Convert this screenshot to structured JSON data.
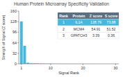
{
  "chart_data": {
    "type": "bar",
    "title": "Human Protein Microarray Specificity Validation",
    "xlabel": "Signal Rank",
    "ylabel": "Strength of Signal (Z score)",
    "x": [
      1,
      2,
      3,
      4,
      5,
      6,
      7,
      8,
      9,
      10,
      11,
      12,
      13,
      14,
      15,
      16,
      17,
      18,
      19,
      20,
      21,
      22,
      23,
      24,
      25,
      26,
      27,
      28,
      29,
      30
    ],
    "values": [
      128.79,
      54.91,
      3.39,
      1.8,
      1.5,
      1.2,
      1.0,
      0.8,
      0.6,
      0.5,
      0.4,
      0.3,
      0.25,
      0.2,
      0.15,
      0.12,
      0.1,
      0.08,
      0.06,
      0.05,
      0.04,
      0.03,
      0.02,
      0.015,
      0.01,
      0.008,
      0.006,
      0.004,
      0.002,
      0.001
    ],
    "color": "#45b8e0",
    "xlim": [
      0.2,
      31
    ],
    "xticks": [
      1,
      10,
      20,
      30
    ],
    "ylim": [
      0,
      160
    ],
    "yticks": [
      0,
      32,
      64,
      96,
      128,
      160
    ],
    "table": {
      "columns": [
        "Rank",
        "Protein",
        "Z score",
        "S score"
      ],
      "rows": [
        [
          1,
          "IL1A",
          128.79,
          73.88
        ],
        [
          2,
          "MCM4",
          54.91,
          51.52
        ],
        [
          3,
          "GPATCH3",
          3.39,
          0.36
        ]
      ]
    }
  }
}
